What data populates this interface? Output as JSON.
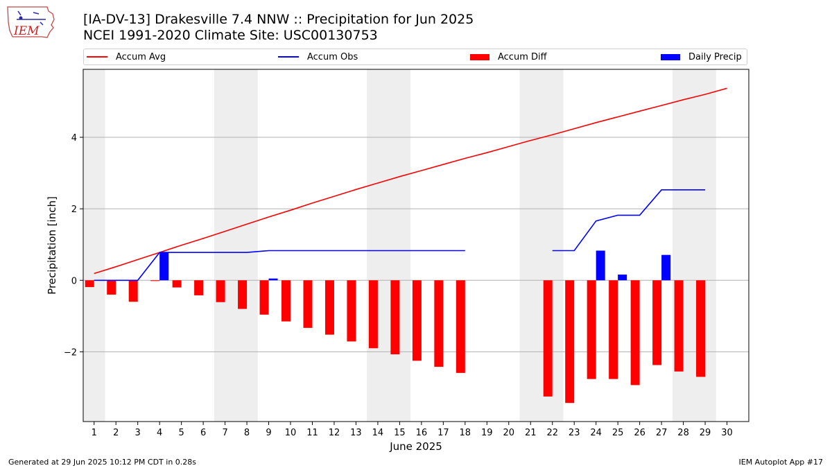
{
  "header": {
    "title_line1": "[IA-DV-13] Drakesville 7.4 NNW :: Precipitation for Jun 2025",
    "title_line2": "NCEI 1991-2020 Climate Site: USC00130753"
  },
  "logo": {
    "text": "IEM",
    "icon": "iowa-state-outline-icon"
  },
  "legend": [
    {
      "label": "Accum Avg",
      "kind": "line",
      "color": "#ff0000"
    },
    {
      "label": "Accum Obs",
      "kind": "line",
      "color": "#0000ff"
    },
    {
      "label": "Accum Diff",
      "kind": "bar",
      "color": "#ff0000"
    },
    {
      "label": "Daily Precip",
      "kind": "bar",
      "color": "#0000ff"
    }
  ],
  "footer": {
    "left": "Generated at 29 Jun 2025 10:12 PM CDT in 0.28s",
    "right": "IEM Autoplot App #17"
  },
  "chart_data": {
    "type": "bar",
    "xlabel": "June 2025",
    "ylabel": "Precipitation [inch]",
    "xlim": [
      0.5,
      31.0
    ],
    "ylim": [
      -3.95,
      5.9
    ],
    "yticks": [
      -2,
      0,
      2,
      4
    ],
    "ytick_labels": [
      "−2",
      "0",
      "2",
      "4"
    ],
    "x": [
      1,
      2,
      3,
      4,
      5,
      6,
      7,
      8,
      9,
      10,
      11,
      12,
      13,
      14,
      15,
      16,
      17,
      18,
      19,
      20,
      21,
      22,
      23,
      24,
      25,
      26,
      27,
      28,
      29,
      30
    ],
    "weekend_shading": [
      [
        0.5,
        1.5
      ],
      [
        6.5,
        8.5
      ],
      [
        13.5,
        15.5
      ],
      [
        20.5,
        22.5
      ],
      [
        27.5,
        29.5
      ]
    ],
    "grid": "horizontal",
    "legend_position": "top",
    "series": [
      {
        "name": "Accum Avg",
        "kind": "line",
        "color": "#ff0000",
        "values": [
          0.19,
          0.38,
          0.58,
          0.78,
          0.98,
          1.17,
          1.37,
          1.57,
          1.77,
          1.96,
          2.16,
          2.35,
          2.54,
          2.72,
          2.9,
          3.07,
          3.24,
          3.41,
          3.57,
          3.74,
          3.91,
          4.07,
          4.24,
          4.41,
          4.57,
          4.73,
          4.89,
          5.05,
          5.2,
          5.37
        ]
      },
      {
        "name": "Accum Obs",
        "kind": "line",
        "color": "#0000ff",
        "values": [
          0.0,
          0.0,
          0.0,
          0.78,
          0.78,
          0.78,
          0.78,
          0.78,
          0.83,
          0.83,
          0.83,
          0.83,
          0.83,
          0.83,
          0.83,
          0.83,
          0.83,
          0.83,
          null,
          null,
          null,
          0.83,
          0.83,
          1.66,
          1.82,
          1.82,
          2.53,
          2.53,
          2.53,
          null
        ]
      },
      {
        "name": "Accum Diff",
        "kind": "bar",
        "color": "#ff0000",
        "values": [
          -0.19,
          -0.4,
          -0.6,
          -0.02,
          -0.2,
          -0.42,
          -0.61,
          -0.8,
          -0.96,
          -1.15,
          -1.33,
          -1.52,
          -1.71,
          -1.9,
          -2.07,
          -2.25,
          -2.42,
          -2.59,
          null,
          null,
          null,
          -3.25,
          -3.43,
          -2.76,
          -2.76,
          -2.93,
          -2.37,
          -2.55,
          -2.7,
          null
        ]
      },
      {
        "name": "Daily Precip",
        "kind": "bar",
        "color": "#0000ff",
        "values": [
          0.0,
          0.0,
          0.0,
          0.78,
          0.0,
          0.0,
          0.0,
          0.0,
          0.05,
          0.0,
          0.0,
          0.0,
          0.0,
          0.0,
          0.0,
          0.0,
          0.0,
          0.0,
          null,
          null,
          null,
          0.0,
          0.0,
          0.83,
          0.16,
          0.0,
          0.71,
          0.0,
          0.0,
          null
        ]
      }
    ]
  }
}
